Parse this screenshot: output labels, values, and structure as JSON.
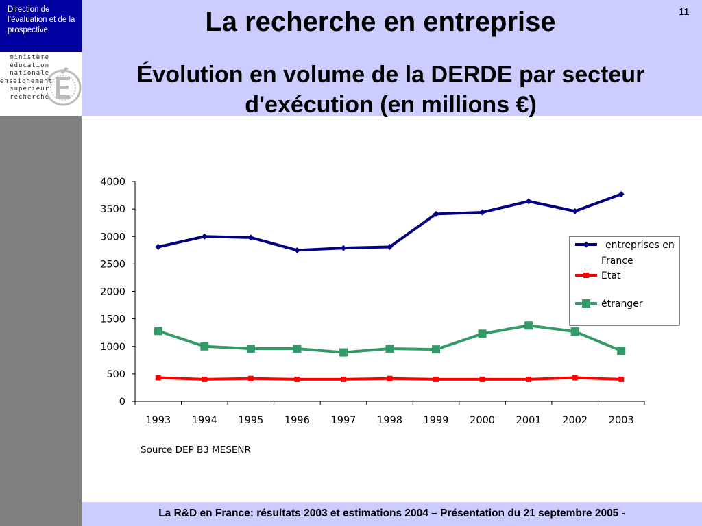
{
  "header": {
    "organization": "Direction de l’évaluation  et de la prospective",
    "ministry_lines": [
      "ministère",
      "éducation",
      "nationale",
      "enseignement",
      "supérieur",
      "recherche"
    ],
    "title": "La recherche en entreprise",
    "subtitle": "Évolution en volume de la DERDE par secteur d'exécution (en millions €)",
    "slide_number": "11"
  },
  "footer": {
    "text": "La R&D en France: résultats 2003 et estimations 2004 – Présentation du 21 septembre 2005 -"
  },
  "source_note": "Source DEP B3 MESENR",
  "colors": {
    "header_band": "#ccccff",
    "logo_block": "#0000a0",
    "left_bar": "#808080"
  },
  "chart_data": {
    "type": "line",
    "title": "",
    "xlabel": "",
    "ylabel": "",
    "categories": [
      "1993",
      "1994",
      "1995",
      "1996",
      "1997",
      "1998",
      "1999",
      "2000",
      "2001",
      "2002",
      "2003"
    ],
    "ylim": [
      0,
      4000
    ],
    "yticks": [
      0,
      500,
      1000,
      1500,
      2000,
      2500,
      3000,
      3500,
      4000
    ],
    "grid": false,
    "legend_position": "right",
    "series": [
      {
        "name": "entreprises en France",
        "color": "#000080",
        "marker": "diamond",
        "values": [
          2810,
          3000,
          2980,
          2750,
          2790,
          2810,
          3410,
          3440,
          3640,
          3460,
          3770
        ]
      },
      {
        "name": "Etat",
        "color": "#ff0000",
        "marker": "square",
        "values": [
          430,
          400,
          415,
          400,
          400,
          415,
          400,
          400,
          400,
          430,
          400
        ]
      },
      {
        "name": "étranger",
        "color": "#339966",
        "marker": "square",
        "values": [
          1280,
          1000,
          960,
          960,
          890,
          960,
          945,
          1230,
          1380,
          1270,
          920
        ]
      }
    ]
  }
}
